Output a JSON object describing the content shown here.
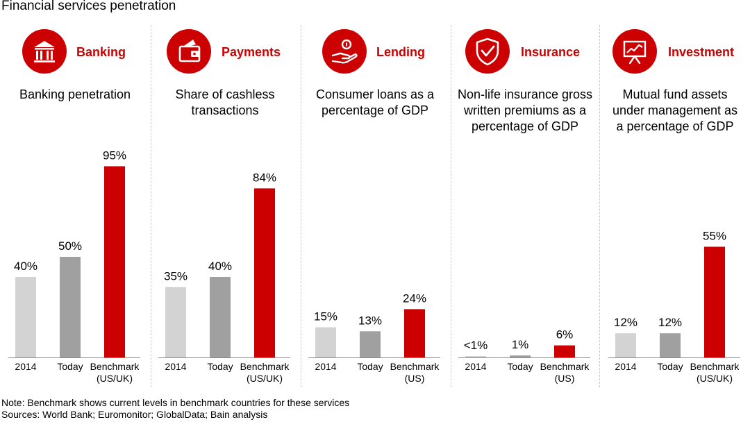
{
  "title": "Financial services penetration",
  "colors": {
    "accent": "#cc0000",
    "y2014": "#d3d3d3",
    "today": "#a0a0a0",
    "benchmark": "#cc0000"
  },
  "chart_data": [
    {
      "type": "bar",
      "category": "Banking",
      "icon": "bank-icon",
      "title": "Banking penetration",
      "title_lines": [
        "Banking penetration"
      ],
      "categories": [
        "2014",
        "Today",
        "Benchmark\n(US/UK)"
      ],
      "category_lines": [
        [
          "2014"
        ],
        [
          "Today"
        ],
        [
          "Benchmark",
          "(US/UK)"
        ]
      ],
      "values": [
        40,
        50,
        95
      ],
      "labels": [
        "40%",
        "50%",
        "95%"
      ]
    },
    {
      "type": "bar",
      "category": "Payments",
      "icon": "wallet-icon",
      "title": "Share of cashless transactions",
      "title_lines": [
        "Share of cashless",
        "transactions"
      ],
      "categories": [
        "2014",
        "Today",
        "Benchmark\n(US/UK)"
      ],
      "category_lines": [
        [
          "2014"
        ],
        [
          "Today"
        ],
        [
          "Benchmark",
          "(US/UK)"
        ]
      ],
      "values": [
        35,
        40,
        84
      ],
      "labels": [
        "35%",
        "40%",
        "84%"
      ]
    },
    {
      "type": "bar",
      "category": "Lending",
      "icon": "hand-coin-icon",
      "title": "Consumer loans as a percentage of GDP",
      "title_lines": [
        "Consumer loans as a",
        "percentage of GDP"
      ],
      "categories": [
        "2014",
        "Today",
        "Benchmark\n(US)"
      ],
      "category_lines": [
        [
          "2014"
        ],
        [
          "Today"
        ],
        [
          "Benchmark",
          "(US)"
        ]
      ],
      "values": [
        15,
        13,
        24
      ],
      "labels": [
        "15%",
        "13%",
        "24%"
      ]
    },
    {
      "type": "bar",
      "category": "Insurance",
      "icon": "shield-icon",
      "title": "Non-life insurance gross written premiums as a percentage of GDP",
      "title_lines": [
        "Non-life insurance gross",
        "written premiums as a",
        "percentage of GDP"
      ],
      "categories": [
        "2014",
        "Today",
        "Benchmark\n(US)"
      ],
      "category_lines": [
        [
          "2014"
        ],
        [
          "Today"
        ],
        [
          "Benchmark",
          "(US)"
        ]
      ],
      "values": [
        0.5,
        1,
        6
      ],
      "labels": [
        "<1%",
        "1%",
        "6%"
      ]
    },
    {
      "type": "bar",
      "category": "Investment",
      "icon": "presentation-chart-icon",
      "title": "Mutual fund assets under management as a percentage of GDP",
      "title_lines": [
        "Mutual fund assets",
        "under management as",
        "a percentage of GDP"
      ],
      "categories": [
        "2014",
        "Today",
        "Benchmark\n(US/UK)"
      ],
      "category_lines": [
        [
          "2014"
        ],
        [
          "Today"
        ],
        [
          "Benchmark",
          "(US/UK)"
        ]
      ],
      "values": [
        12,
        12,
        55
      ],
      "labels": [
        "12%",
        "12%",
        "55%"
      ]
    }
  ],
  "notes": {
    "note": "Note: Benchmark shows current levels in benchmark countries for these services",
    "sources": "Sources: World Bank; Euromonitor; GlobalData; Bain analysis"
  }
}
